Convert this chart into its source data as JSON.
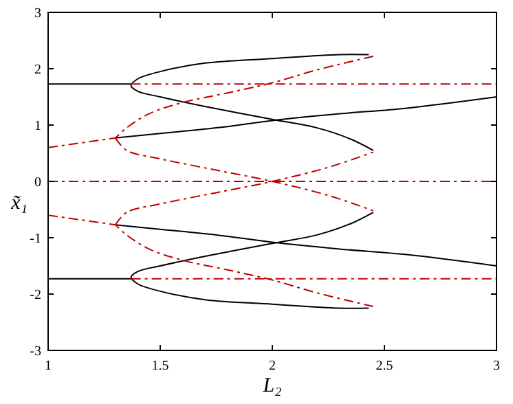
{
  "chart_data": {
    "type": "line",
    "xlabel": "L₂",
    "ylabel": "x̃₁",
    "xlim": [
      1,
      3
    ],
    "ylim": [
      -3,
      3
    ],
    "xticks": [
      1,
      1.5,
      2,
      2.5,
      3
    ],
    "yticks": [
      -3,
      -2,
      -1,
      0,
      1,
      2,
      3
    ],
    "grid": false,
    "series": [
      {
        "color": "#000000",
        "line_style": "solid",
        "x": [
          1,
          1.37
        ],
        "values": [
          1.73,
          1.73
        ]
      },
      {
        "color": "#000000",
        "line_style": "solid",
        "x": [
          2.43,
          2.3,
          2.0,
          1.7,
          1.5,
          1.4,
          1.37,
          1.4,
          1.5,
          1.7,
          2.0,
          2.2,
          2.35,
          2.45
        ],
        "values": [
          2.25,
          2.25,
          2.18,
          2.1,
          1.95,
          1.82,
          1.7,
          1.6,
          1.5,
          1.33,
          1.1,
          0.95,
          0.75,
          0.55
        ]
      },
      {
        "color": "#000000",
        "line_style": "solid",
        "x": [
          1.3,
          1.5,
          1.75,
          2,
          2.3,
          2.6,
          3
        ],
        "values": [
          0.77,
          0.85,
          0.95,
          1.08,
          1.2,
          1.3,
          1.5
        ]
      },
      {
        "color": "#000000",
        "line_style": "solid",
        "x": [
          1,
          1.37
        ],
        "values": [
          -1.73,
          -1.73
        ]
      },
      {
        "color": "#000000",
        "line_style": "solid",
        "x": [
          2.43,
          2.3,
          2.0,
          1.7,
          1.5,
          1.4,
          1.37,
          1.4,
          1.5,
          1.7,
          2.0,
          2.2,
          2.35,
          2.45
        ],
        "values": [
          -2.25,
          -2.25,
          -2.18,
          -2.1,
          -1.95,
          -1.82,
          -1.7,
          -1.6,
          -1.5,
          -1.33,
          -1.1,
          -0.95,
          -0.75,
          -0.55
        ]
      },
      {
        "color": "#000000",
        "line_style": "solid",
        "x": [
          1.3,
          1.5,
          1.75,
          2,
          2.3,
          2.6,
          3
        ],
        "values": [
          -0.77,
          -0.85,
          -0.95,
          -1.08,
          -1.2,
          -1.3,
          -1.5
        ]
      },
      {
        "color": "#c00000",
        "line_style": "dashed",
        "x": [
          1.37,
          3
        ],
        "values": [
          1.73,
          1.73
        ]
      },
      {
        "color": "#c00000",
        "line_style": "dashed",
        "x": [
          1,
          3
        ],
        "values": [
          0,
          0
        ]
      },
      {
        "color": "#c00000",
        "line_style": "dashed",
        "x": [
          1.37,
          3
        ],
        "values": [
          -1.73,
          -1.73
        ]
      },
      {
        "color": "#c00000",
        "line_style": "dashed",
        "x": [
          2.45,
          2.2,
          2.0,
          1.8,
          1.6,
          1.45,
          1.35,
          1.3
        ],
        "values": [
          2.22,
          1.98,
          1.75,
          1.57,
          1.4,
          1.2,
          0.95,
          0.77
        ]
      },
      {
        "color": "#c00000",
        "line_style": "dashed",
        "x": [
          1,
          1.3
        ],
        "values": [
          0.6,
          0.77
        ]
      },
      {
        "color": "#c00000",
        "line_style": "dashed",
        "x": [
          1.3,
          1.35,
          1.5,
          1.75,
          2,
          2.25,
          2.45
        ],
        "values": [
          0.77,
          0.55,
          0.4,
          0.2,
          0,
          -0.25,
          -0.52
        ]
      },
      {
        "color": "#c00000",
        "line_style": "dashed",
        "x": [
          1.3,
          1.35,
          1.5,
          1.75,
          2,
          2.25,
          2.45
        ],
        "values": [
          -0.77,
          -0.55,
          -0.4,
          -0.2,
          0,
          0.25,
          0.52
        ]
      },
      {
        "color": "#c00000",
        "line_style": "dashed",
        "x": [
          2.45,
          2.2,
          2.0,
          1.8,
          1.6,
          1.45,
          1.35,
          1.3
        ],
        "values": [
          -2.22,
          -1.98,
          -1.75,
          -1.57,
          -1.4,
          -1.2,
          -0.95,
          -0.77
        ]
      },
      {
        "color": "#c00000",
        "line_style": "dashed",
        "x": [
          1,
          1.3
        ],
        "values": [
          -0.6,
          -0.77
        ]
      }
    ]
  }
}
